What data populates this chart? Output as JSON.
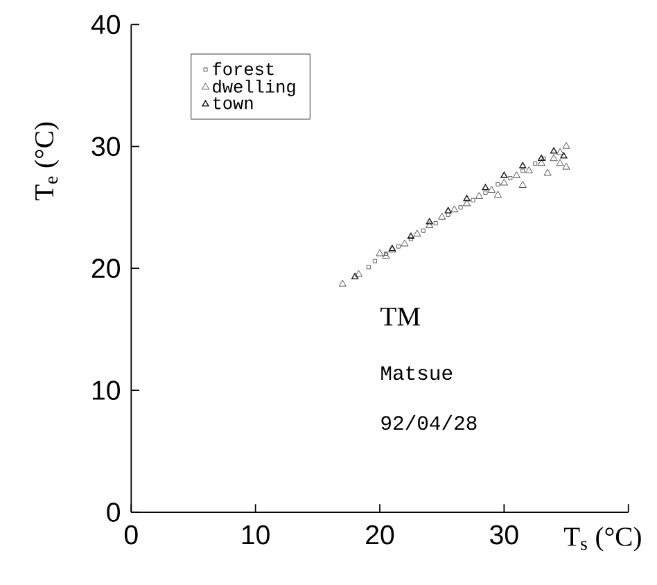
{
  "chart_data": {
    "type": "scatter",
    "xlabel": "T$_{s}$ (°C)",
    "ylabel": "T$_{e}$ (°C)",
    "xlim": [
      0,
      40
    ],
    "ylim": [
      0,
      40
    ],
    "xticks": [
      0,
      10,
      20,
      30,
      {
        "value": 40,
        "label": null
      }
    ],
    "yticks": [
      0,
      10,
      20,
      30,
      40
    ],
    "legend": "top left",
    "grid": false,
    "annotations": [
      "TM",
      "Matsue",
      "92/04/28"
    ],
    "series": [
      {
        "name": "forest",
        "color": "#333333",
        "marker": "square",
        "x": [
          19.1,
          19.6,
          20.5,
          21.5,
          22.5,
          23.5,
          24.5,
          25.5,
          26.5,
          27.5,
          28.5,
          29.5,
          30.5,
          31.5,
          32.5,
          33.2
        ],
        "values": [
          20.1,
          20.6,
          21.2,
          21.8,
          22.4,
          23.1,
          23.7,
          24.4,
          25.0,
          25.6,
          26.2,
          26.9,
          27.4,
          28.0,
          28.6,
          29.0
        ]
      },
      {
        "name": "dwelling",
        "color": "#222222",
        "marker": "triangle",
        "x": [
          17.0,
          18.3,
          20.0,
          20.5,
          21.0,
          22.0,
          23.0,
          24.0,
          25.0,
          26.0,
          27.0,
          28.0,
          29.0,
          30.0,
          31.0,
          32.0,
          33.0,
          34.0,
          34.5,
          35.0,
          34.5,
          35.0,
          33.5,
          31.5,
          29.5
        ],
        "values": [
          18.7,
          19.5,
          21.2,
          21.0,
          21.5,
          22.0,
          22.8,
          23.5,
          24.2,
          24.8,
          25.3,
          25.9,
          26.4,
          27.0,
          27.6,
          28.0,
          28.6,
          29.0,
          29.5,
          30.0,
          28.6,
          28.3,
          27.8,
          26.8,
          26.0
        ]
      },
      {
        "name": "town",
        "color": "#111111",
        "marker": "triangle_bar",
        "x": [
          18.0,
          21.0,
          22.5,
          24.0,
          25.5,
          27.0,
          28.5,
          30.0,
          31.5,
          33.0,
          34.0,
          34.8
        ],
        "values": [
          19.3,
          21.6,
          22.6,
          23.8,
          24.7,
          25.7,
          26.6,
          27.6,
          28.4,
          29.0,
          29.6,
          29.2
        ]
      }
    ]
  }
}
